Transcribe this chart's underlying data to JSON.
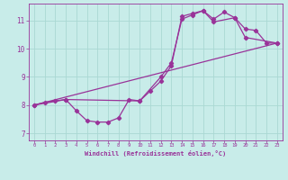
{
  "title": "",
  "xlabel": "Windchill (Refroidissement éolien,°C)",
  "ylabel": "",
  "background_color": "#c8ece9",
  "grid_color": "#aad8d3",
  "line_color": "#993399",
  "spine_color": "#993399",
  "xlim": [
    -0.5,
    23.5
  ],
  "ylim": [
    6.75,
    11.6
  ],
  "xticks": [
    0,
    1,
    2,
    3,
    4,
    5,
    6,
    7,
    8,
    9,
    10,
    11,
    12,
    13,
    14,
    15,
    16,
    17,
    18,
    19,
    20,
    21,
    22,
    23
  ],
  "yticks": [
    7,
    8,
    9,
    10,
    11
  ],
  "series1_x": [
    0,
    1,
    2,
    3,
    4,
    5,
    6,
    7,
    8,
    9,
    10,
    11,
    12,
    13,
    14,
    15,
    16,
    17,
    18,
    19,
    20,
    21,
    22,
    23
  ],
  "series1_y": [
    8.0,
    8.1,
    8.15,
    8.2,
    7.8,
    7.45,
    7.4,
    7.4,
    7.55,
    8.2,
    8.15,
    8.5,
    8.85,
    9.4,
    11.15,
    11.25,
    11.35,
    11.05,
    11.3,
    11.1,
    10.7,
    10.65,
    10.2,
    10.2
  ],
  "series2_x": [
    0,
    3,
    10,
    12,
    13,
    14,
    15,
    16,
    17,
    19,
    20,
    23
  ],
  "series2_y": [
    8.0,
    8.2,
    8.15,
    9.0,
    9.5,
    11.05,
    11.2,
    11.35,
    10.95,
    11.1,
    10.4,
    10.2
  ],
  "series3_x": [
    0,
    23
  ],
  "series3_y": [
    8.0,
    10.2
  ],
  "marker_size": 2.2,
  "line_width": 0.9
}
